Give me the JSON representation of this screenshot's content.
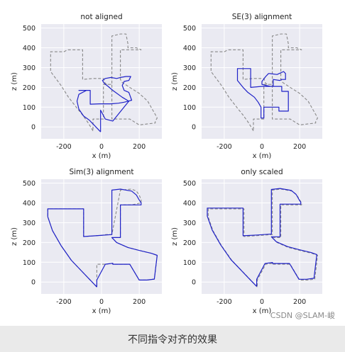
{
  "chart_data": [
    {
      "type": "line",
      "title": "not aligned",
      "xlabel": "x (m)",
      "ylabel": "z (m)",
      "xlim": [
        -320,
        320
      ],
      "ylim": [
        -60,
        520
      ],
      "xticks": [
        "-200",
        "0",
        "200"
      ],
      "yticks": [
        "0",
        "100",
        "200",
        "300",
        "400",
        "500"
      ],
      "grid": true,
      "series": [
        {
          "style": "reference",
          "color": "#888888",
          "dashed": true,
          "x": [
            -45,
            -70,
            -100,
            -130,
            -175,
            -215,
            -270,
            -270,
            -200,
            -200,
            -180,
            -180,
            -100,
            -100,
            -45,
            -45,
            10,
            10,
            20,
            30,
            40,
            50,
            55,
            55,
            55,
            55,
            100,
            130,
            140,
            140,
            160,
            185,
            210,
            210,
            160,
            160,
            100,
            100,
            100,
            110,
            150,
            200,
            245,
            290,
            295,
            285,
            285,
            285,
            240,
            200,
            150,
            100,
            55,
            55,
            55,
            10,
            10,
            -45,
            -45
          ],
          "y": [
            -20,
            20,
            60,
            95,
            150,
            210,
            280,
            380,
            380,
            380,
            390,
            390,
            390,
            240,
            245,
            245,
            245,
            245,
            220,
            215,
            215,
            215,
            215,
            280,
            340,
            460,
            470,
            470,
            420,
            400,
            400,
            400,
            390,
            390,
            390,
            390,
            390,
            300,
            240,
            225,
            200,
            170,
            130,
            55,
            45,
            30,
            20,
            20,
            15,
            10,
            40,
            40,
            40,
            100,
            215,
            215,
            40,
            40,
            -20
          ]
        },
        {
          "style": "estimate",
          "color": "#1f22c8",
          "dashed": false,
          "x": [
            -5,
            -40,
            -65,
            -95,
            -120,
            -130,
            -120,
            -80,
            -60,
            -60,
            -120,
            -120,
            -60,
            -60,
            -10,
            -10,
            50,
            50,
            90,
            120,
            140,
            160,
            145,
            145,
            120,
            110,
            120,
            145,
            155,
            130,
            100,
            80,
            80,
            80,
            50,
            50,
            20,
            5,
            15,
            35,
            60,
            60,
            110,
            110,
            145,
            145,
            60,
            60,
            20,
            20,
            -5,
            -5
          ],
          "y": [
            -25,
            10,
            35,
            55,
            90,
            130,
            165,
            185,
            185,
            185,
            185,
            185,
            185,
            115,
            117,
            117,
            117,
            117,
            120,
            125,
            130,
            135,
            175,
            175,
            185,
            210,
            230,
            235,
            255,
            255,
            250,
            245,
            245,
            245,
            250,
            250,
            245,
            235,
            220,
            205,
            185,
            185,
            150,
            150,
            130,
            130,
            30,
            30,
            40,
            40,
            85,
            -25
          ]
        }
      ]
    },
    {
      "type": "line",
      "title": "SE(3) alignment",
      "xlabel": "x (m)",
      "ylabel": "z (m)",
      "xlim": [
        -320,
        320
      ],
      "ylim": [
        -60,
        520
      ],
      "xticks": [
        "-200",
        "0",
        "200"
      ],
      "yticks": [
        "0",
        "100",
        "200",
        "300",
        "400",
        "500"
      ],
      "grid": true,
      "series": [
        {
          "style": "reference",
          "color": "#888888",
          "dashed": true,
          "x": [
            -45,
            -70,
            -100,
            -130,
            -175,
            -215,
            -270,
            -270,
            -200,
            -200,
            -180,
            -180,
            -100,
            -100,
            -45,
            -45,
            10,
            10,
            20,
            30,
            40,
            50,
            55,
            55,
            55,
            55,
            100,
            130,
            140,
            140,
            160,
            185,
            210,
            210,
            160,
            160,
            100,
            100,
            100,
            110,
            150,
            200,
            245,
            290,
            295,
            285,
            285,
            285,
            240,
            200,
            150,
            100,
            55,
            55,
            55,
            10,
            10,
            -45,
            -45
          ],
          "y": [
            -20,
            20,
            60,
            95,
            150,
            210,
            280,
            380,
            380,
            380,
            390,
            390,
            390,
            240,
            245,
            245,
            245,
            245,
            220,
            215,
            215,
            215,
            215,
            280,
            340,
            460,
            470,
            470,
            420,
            400,
            400,
            400,
            390,
            390,
            390,
            390,
            390,
            300,
            240,
            225,
            200,
            170,
            130,
            55,
            45,
            30,
            20,
            20,
            15,
            10,
            40,
            40,
            40,
            100,
            215,
            215,
            40,
            40,
            -20
          ]
        },
        {
          "style": "estimate",
          "color": "#1f22c8",
          "dashed": false,
          "x": [
            -5,
            -20,
            -40,
            -75,
            -100,
            -130,
            -130,
            -60,
            -60,
            -125,
            -125,
            -60,
            -60,
            0,
            0,
            20,
            35,
            50,
            60,
            60,
            95,
            105,
            125,
            125,
            115,
            80,
            80,
            40,
            35,
            20,
            0,
            0,
            20,
            45,
            50,
            105,
            105,
            140,
            140,
            95,
            90,
            90,
            10,
            10,
            -5,
            -5
          ],
          "y": [
            100,
            125,
            150,
            175,
            200,
            235,
            295,
            295,
            295,
            295,
            295,
            295,
            200,
            205,
            205,
            205,
            205,
            205,
            205,
            240,
            235,
            240,
            240,
            270,
            280,
            265,
            265,
            270,
            270,
            255,
            230,
            215,
            210,
            205,
            205,
            205,
            180,
            180,
            80,
            80,
            80,
            100,
            100,
            45,
            45,
            100
          ]
        }
      ]
    },
    {
      "type": "line",
      "title": "Sim(3) alignment",
      "xlabel": "x (m)",
      "ylabel": "z (m)",
      "xlim": [
        -320,
        320
      ],
      "ylim": [
        -60,
        520
      ],
      "xticks": [
        "-200",
        "0",
        "200"
      ],
      "yticks": [
        "0",
        "100",
        "200",
        "300",
        "400",
        "500"
      ],
      "grid": true,
      "series": [
        {
          "style": "reference",
          "color": "#888888",
          "dashed": true,
          "x": [
            -25,
            -60,
            -110,
            -160,
            -215,
            -260,
            -285,
            -285,
            -180,
            -180,
            -180,
            -180,
            -95,
            -95,
            -95,
            -95,
            -20,
            -20,
            -10,
            -5,
            25,
            55,
            55,
            55,
            55,
            100,
            160,
            185,
            200,
            210,
            210,
            160,
            160,
            100,
            100,
            55,
            55,
            80,
            140,
            200,
            265,
            295,
            280,
            240,
            200,
            150,
            100,
            60,
            60,
            60,
            20,
            20,
            -25,
            -25,
            -25
          ],
          "y": [
            -25,
            10,
            60,
            110,
            185,
            260,
            330,
            370,
            370,
            370,
            370,
            370,
            370,
            230,
            230,
            230,
            235,
            235,
            235,
            235,
            240,
            240,
            240,
            240,
            240,
            465,
            470,
            460,
            440,
            415,
            400,
            390,
            390,
            390,
            225,
            225,
            225,
            200,
            175,
            160,
            145,
            135,
            15,
            10,
            10,
            90,
            90,
            90,
            90,
            95,
            90,
            90,
            90,
            10,
            -25
          ]
        },
        {
          "style": "estimate",
          "color": "#1f22c8",
          "dashed": false,
          "x": [
            -25,
            -60,
            -110,
            -160,
            -215,
            -260,
            -285,
            -285,
            -180,
            -180,
            -95,
            -95,
            -20,
            -20,
            55,
            55,
            55,
            55,
            100,
            160,
            185,
            200,
            210,
            210,
            160,
            160,
            100,
            100,
            55,
            55,
            80,
            140,
            200,
            265,
            295,
            280,
            240,
            200,
            150,
            100,
            60,
            60,
            60,
            20,
            20,
            -25,
            -25
          ],
          "y": [
            -25,
            10,
            60,
            110,
            185,
            260,
            330,
            370,
            370,
            370,
            370,
            230,
            235,
            235,
            240,
            240,
            240,
            465,
            470,
            460,
            440,
            415,
            400,
            390,
            390,
            390,
            390,
            225,
            225,
            225,
            200,
            175,
            160,
            145,
            135,
            15,
            10,
            10,
            90,
            90,
            90,
            90,
            95,
            90,
            90,
            10,
            -25
          ]
        }
      ]
    },
    {
      "type": "line",
      "title": "only scaled",
      "xlabel": "x (m)",
      "ylabel": "z (m)",
      "xlim": [
        -320,
        320
      ],
      "ylim": [
        -60,
        520
      ],
      "xticks": [
        "-200",
        "0",
        "200"
      ],
      "yticks": [
        "0",
        "100",
        "200",
        "300",
        "400",
        "500"
      ],
      "grid": true,
      "series": [
        {
          "style": "reference",
          "color": "#888888",
          "dashed": true,
          "x": [
            -25,
            -60,
            -110,
            -160,
            -215,
            -260,
            -285,
            -285,
            -180,
            -180,
            -95,
            -95,
            -20,
            -20,
            55,
            55,
            55,
            55,
            100,
            160,
            185,
            200,
            210,
            210,
            160,
            160,
            100,
            100,
            55,
            55,
            80,
            140,
            200,
            265,
            295,
            280,
            240,
            200,
            150,
            100,
            60,
            60,
            60,
            20,
            20,
            -25,
            -25
          ],
          "y": [
            -25,
            10,
            60,
            110,
            185,
            260,
            330,
            370,
            370,
            370,
            370,
            230,
            235,
            235,
            240,
            240,
            240,
            465,
            470,
            460,
            440,
            415,
            400,
            390,
            390,
            390,
            390,
            225,
            225,
            225,
            200,
            175,
            160,
            145,
            135,
            15,
            10,
            10,
            90,
            90,
            90,
            90,
            95,
            90,
            90,
            10,
            -25
          ]
        },
        {
          "style": "estimate",
          "color": "#1f22c8",
          "dashed": false,
          "x": [
            -28,
            -64,
            -114,
            -164,
            -219,
            -264,
            -290,
            -290,
            -184,
            -184,
            -100,
            -100,
            -24,
            -24,
            50,
            50,
            50,
            50,
            96,
            156,
            181,
            196,
            206,
            206,
            156,
            156,
            96,
            96,
            50,
            50,
            76,
            136,
            196,
            261,
            291,
            276,
            236,
            196,
            146,
            96,
            56,
            56,
            56,
            16,
            16,
            -28,
            -28
          ],
          "y": [
            -22,
            13,
            63,
            113,
            188,
            263,
            333,
            374,
            374,
            374,
            374,
            234,
            238,
            238,
            243,
            243,
            243,
            468,
            473,
            463,
            443,
            418,
            403,
            394,
            394,
            394,
            394,
            229,
            229,
            229,
            204,
            179,
            164,
            149,
            139,
            19,
            14,
            14,
            94,
            94,
            94,
            94,
            99,
            94,
            94,
            14,
            -22
          ]
        }
      ]
    }
  ],
  "watermark": "CSDN @SLAM-峻",
  "caption": "不同指令对齐的效果"
}
